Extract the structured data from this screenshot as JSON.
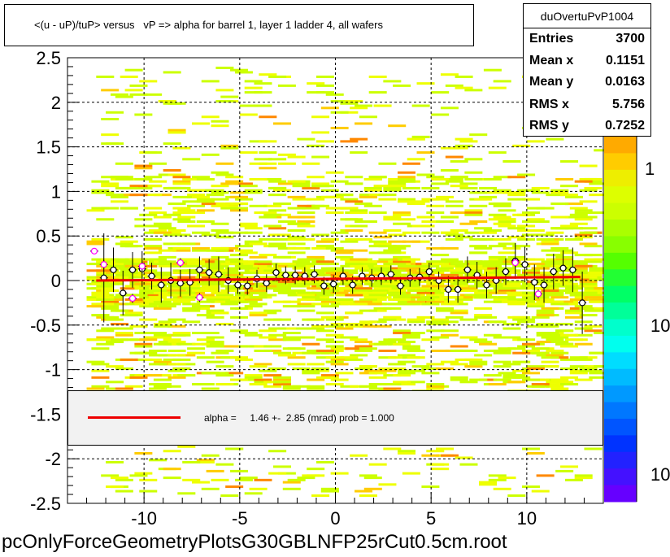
{
  "title": "<(u - uP)/tuP> versus   vP => alpha for barrel 1, layer 1 ladder 4, all wafers",
  "stats": {
    "name": "duOvertuPvP1004",
    "rows": [
      {
        "label": "Entries",
        "value": "3700"
      },
      {
        "label": "Mean x",
        "value": "0.1151"
      },
      {
        "label": "Mean y",
        "value": "0.0163"
      },
      {
        "label": "RMS x",
        "value": "5.756"
      },
      {
        "label": "RMS y",
        "value": "0.7252"
      }
    ]
  },
  "legend": {
    "text": "alpha =     1.46 +-  2.85 (mrad) prob = 1.000",
    "line_color": "#ee0000"
  },
  "file_label": "pcOnlyForceGeometryPlotsG30GBLNFP25rCut0.5cm.root",
  "palette_labels": [
    "1",
    "10",
    "10"
  ],
  "chart_data": {
    "type": "heatmap",
    "title": "<(u - uP)/tuP> versus   vP => alpha for barrel 1, layer 1 ladder 4, all wafers",
    "xlim": [
      -14,
      14
    ],
    "ylim": [
      -2.5,
      2.5
    ],
    "x_ticks": [
      -10,
      -5,
      0,
      5,
      10
    ],
    "x_tick_labels": [
      "-10",
      "-5",
      "0",
      "5",
      "10"
    ],
    "y_ticks": [
      -2.5,
      -2,
      -1.5,
      -1,
      -0.5,
      0,
      0.5,
      1,
      1.5,
      2,
      2.5
    ],
    "y_tick_labels": [
      "-2.5",
      "-2",
      "-1.5",
      "-1",
      "-0.5",
      "0",
      "0.5",
      "1",
      "1.5",
      "2",
      "2.5"
    ],
    "grid": true,
    "fit": {
      "type": "line",
      "x": [
        -12.5,
        12.8
      ],
      "y": [
        0.0,
        0.04
      ],
      "color": "#ee0000"
    },
    "profile_points": [
      {
        "x": -12.6,
        "y": 0.33,
        "err": 0.03,
        "color": "#ff00ff"
      },
      {
        "x": -12.1,
        "y": 0.03,
        "err": 0.5,
        "color": "#000000"
      },
      {
        "x": -11.6,
        "y": 0.12,
        "err": 0.25,
        "color": "#000000"
      },
      {
        "x": -11.1,
        "y": -0.14,
        "err": 0.25,
        "color": "#000000"
      },
      {
        "x": -10.6,
        "y": 0.12,
        "err": 0.2,
        "color": "#000000"
      },
      {
        "x": -10.1,
        "y": 0.13,
        "err": 0.2,
        "color": "#000000"
      },
      {
        "x": -9.6,
        "y": 0.05,
        "err": 0.15,
        "color": "#000000"
      },
      {
        "x": -9.1,
        "y": -0.05,
        "err": 0.2,
        "color": "#000000"
      },
      {
        "x": -8.6,
        "y": 0.0,
        "err": 0.2,
        "color": "#000000"
      },
      {
        "x": -8.1,
        "y": -0.03,
        "err": 0.15,
        "color": "#000000"
      },
      {
        "x": -7.6,
        "y": -0.02,
        "err": 0.15,
        "color": "#000000"
      },
      {
        "x": -7.1,
        "y": 0.12,
        "err": 0.15,
        "color": "#000000"
      },
      {
        "x": -6.6,
        "y": 0.09,
        "err": 0.15,
        "color": "#000000"
      },
      {
        "x": -6.1,
        "y": 0.07,
        "err": 0.2,
        "color": "#000000"
      },
      {
        "x": -5.6,
        "y": 0.0,
        "err": 0.15,
        "color": "#000000"
      },
      {
        "x": -5.1,
        "y": -0.05,
        "err": 0.1,
        "color": "#000000"
      },
      {
        "x": -4.6,
        "y": -0.06,
        "err": 0.1,
        "color": "#000000"
      },
      {
        "x": -4.1,
        "y": 0.02,
        "err": 0.1,
        "color": "#000000"
      },
      {
        "x": -3.6,
        "y": -0.03,
        "err": 0.1,
        "color": "#000000"
      },
      {
        "x": -3.1,
        "y": 0.09,
        "err": 0.1,
        "color": "#000000"
      },
      {
        "x": -2.6,
        "y": 0.06,
        "err": 0.1,
        "color": "#000000"
      },
      {
        "x": -2.1,
        "y": 0.06,
        "err": 0.1,
        "color": "#000000"
      },
      {
        "x": -1.6,
        "y": 0.05,
        "err": 0.1,
        "color": "#000000"
      },
      {
        "x": -1.1,
        "y": 0.07,
        "err": 0.1,
        "color": "#000000"
      },
      {
        "x": -0.6,
        "y": -0.06,
        "err": 0.1,
        "color": "#000000"
      },
      {
        "x": -0.1,
        "y": -0.04,
        "err": 0.1,
        "color": "#000000"
      },
      {
        "x": 0.4,
        "y": 0.05,
        "err": 0.1,
        "color": "#000000"
      },
      {
        "x": 0.9,
        "y": -0.05,
        "err": 0.1,
        "color": "#000000"
      },
      {
        "x": 1.4,
        "y": 0.05,
        "err": 0.1,
        "color": "#000000"
      },
      {
        "x": 1.9,
        "y": 0.03,
        "err": 0.1,
        "color": "#000000"
      },
      {
        "x": 2.4,
        "y": 0.05,
        "err": 0.1,
        "color": "#000000"
      },
      {
        "x": 2.9,
        "y": 0.07,
        "err": 0.1,
        "color": "#000000"
      },
      {
        "x": 3.4,
        "y": -0.06,
        "err": 0.1,
        "color": "#000000"
      },
      {
        "x": 3.9,
        "y": 0.03,
        "err": 0.1,
        "color": "#000000"
      },
      {
        "x": 4.4,
        "y": 0.04,
        "err": 0.1,
        "color": "#000000"
      },
      {
        "x": 4.9,
        "y": 0.1,
        "err": 0.1,
        "color": "#000000"
      },
      {
        "x": 5.4,
        "y": 0.0,
        "err": 0.1,
        "color": "#000000"
      },
      {
        "x": 5.9,
        "y": -0.1,
        "err": 0.15,
        "color": "#000000"
      },
      {
        "x": 6.4,
        "y": -0.1,
        "err": 0.15,
        "color": "#000000"
      },
      {
        "x": 6.9,
        "y": 0.12,
        "err": 0.15,
        "color": "#000000"
      },
      {
        "x": 7.4,
        "y": 0.06,
        "err": 0.15,
        "color": "#000000"
      },
      {
        "x": 7.9,
        "y": -0.05,
        "err": 0.15,
        "color": "#000000"
      },
      {
        "x": 8.4,
        "y": 0.0,
        "err": 0.15,
        "color": "#000000"
      },
      {
        "x": 8.9,
        "y": 0.1,
        "err": 0.15,
        "color": "#000000"
      },
      {
        "x": 9.4,
        "y": 0.22,
        "err": 0.2,
        "color": "#000000"
      },
      {
        "x": 9.9,
        "y": 0.18,
        "err": 0.2,
        "color": "#000000"
      },
      {
        "x": 10.4,
        "y": -0.02,
        "err": 0.2,
        "color": "#000000"
      },
      {
        "x": 10.9,
        "y": -0.05,
        "err": 0.2,
        "color": "#000000"
      },
      {
        "x": 11.4,
        "y": 0.1,
        "err": 0.2,
        "color": "#000000"
      },
      {
        "x": 11.9,
        "y": 0.14,
        "err": 0.2,
        "color": "#000000"
      },
      {
        "x": 12.4,
        "y": 0.12,
        "err": 0.25,
        "color": "#000000"
      },
      {
        "x": 12.9,
        "y": -0.25,
        "err": 0.35,
        "color": "#000000"
      },
      {
        "x": -12.1,
        "y": 0.18,
        "err": 0.05,
        "color": "#ff00ff"
      },
      {
        "x": -10.6,
        "y": -0.2,
        "err": 0.05,
        "color": "#ff00ff"
      },
      {
        "x": -10.1,
        "y": 0.16,
        "err": 0.05,
        "color": "#ff00ff"
      },
      {
        "x": -8.1,
        "y": 0.2,
        "err": 0.05,
        "color": "#ff00ff"
      },
      {
        "x": -7.1,
        "y": -0.19,
        "err": 0.05,
        "color": "#ff00ff"
      },
      {
        "x": 9.4,
        "y": 0.2,
        "err": 0.05,
        "color": "#ff00ff"
      },
      {
        "x": 10.6,
        "y": -0.15,
        "err": 0.05,
        "color": "#ff00ff"
      }
    ]
  }
}
